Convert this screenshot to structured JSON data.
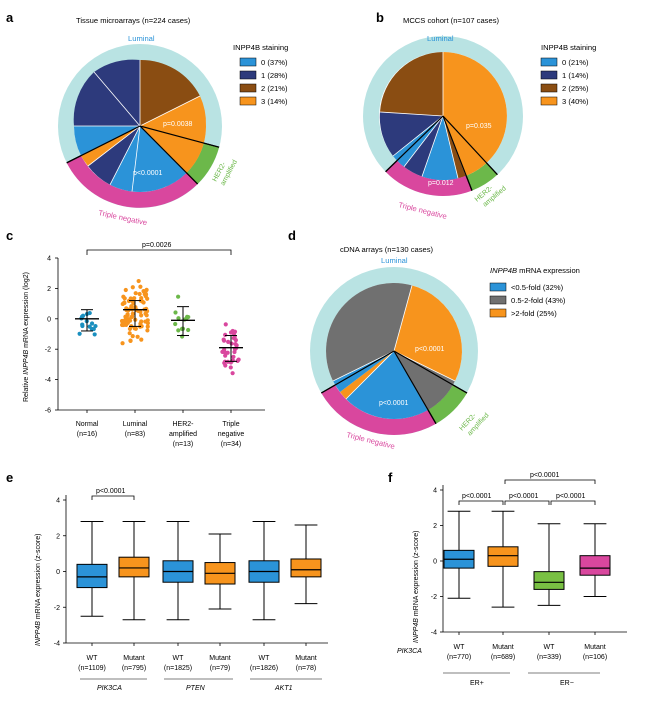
{
  "panels": {
    "a": {
      "letter": "a",
      "title": "Tissue microarrays (n=224 cases)",
      "legend_title": "INPP4B staining",
      "outer_labels": {
        "luminal": "Luminal",
        "her2_line1": "HER2-",
        "her2_line2": "amplified",
        "triple": "Triple negative"
      },
      "pvalues": {
        "luminal": "p=0.0038",
        "triple": "p<0.0001"
      }
    },
    "b": {
      "letter": "b",
      "title": "MCCS cohort (n=107 cases)",
      "legend_title": "INPP4B staining",
      "outer_labels": {
        "luminal": "Luminal",
        "her2_line1": "HER2-",
        "her2_line2": "amplified",
        "triple": "Triple negative"
      },
      "pvalues": {
        "luminal": "p=0.035",
        "triple": "p=0.012"
      }
    },
    "c": {
      "letter": "c",
      "ylabel_pre": "Relative ",
      "ylabel_gene": "INPP4B",
      "ylabel_post": " mRNA expression (log2)",
      "pvalue": "p=0.0026"
    },
    "d": {
      "letter": "d",
      "title": "cDNA arrays (n=130 cases)",
      "legend_title_gene": "INPP4B",
      "legend_title_rest": " mRNA expression",
      "outer_labels": {
        "luminal": "Luminal",
        "her2_line1": "HER2-",
        "her2_line2": "amplified",
        "triple": "Triple negative"
      },
      "pvalues": {
        "luminal": "p<0.0001",
        "triple": "p<0.0001"
      }
    },
    "e": {
      "letter": "e",
      "ylabel_gene": "INPP4B",
      "ylabel_rest": " mRNA expression (z-score)",
      "pvalue": "p<0.0001",
      "genes": [
        "PIK3CA",
        "PTEN",
        "AKT1"
      ]
    },
    "f": {
      "letter": "f",
      "ylabel_gene": "INPP4B",
      "ylabel_rest": " mRNA expression (z-score)",
      "row_label": "PIK3CA",
      "pvalues": [
        "p<0.0001",
        "p<0.0001",
        "p<0.0001",
        "p<0.0001"
      ],
      "groups": [
        "ER+",
        "ER−"
      ]
    }
  },
  "chart_data": [
    {
      "id": "a",
      "type": "pie",
      "title": "Tissue microarrays (n=224 cases)",
      "legend": [
        {
          "label": "0 (37%)",
          "color": "#2b93d8",
          "value": 37
        },
        {
          "label": "1 (28%)",
          "color": "#2d3a7c",
          "value": 28
        },
        {
          "label": "2 (21%)",
          "color": "#8a4d12",
          "value": 21
        },
        {
          "label": "3 (14%)",
          "color": "#f7941d",
          "value": 14
        }
      ],
      "subtypes": [
        "Luminal",
        "HER2-amplified",
        "Triple negative"
      ]
    },
    {
      "id": "b",
      "type": "pie",
      "title": "MCCS cohort (n=107 cases)",
      "legend": [
        {
          "label": "0 (21%)",
          "color": "#2b93d8",
          "value": 21
        },
        {
          "label": "1 (14%)",
          "color": "#2d3a7c",
          "value": 14
        },
        {
          "label": "2 (25%)",
          "color": "#8a4d12",
          "value": 25
        },
        {
          "label": "3 (40%)",
          "color": "#f7941d",
          "value": 40
        }
      ],
      "subtypes": [
        "Luminal",
        "HER2-amplified",
        "Triple negative"
      ]
    },
    {
      "id": "c",
      "type": "scatter",
      "categories": [
        {
          "name": "Normal",
          "n": "(n=16)",
          "color": "#1a8fbf",
          "median": 0.0,
          "sd_low": -0.8,
          "sd_high": 0.6
        },
        {
          "name": "Luminal",
          "n": "(n=83)",
          "color": "#f7941d",
          "median": 0.6,
          "sd_low": -0.5,
          "sd_high": 1.2
        },
        {
          "name_line1": "HER2-",
          "name_line2": "amplified",
          "n": "(n=13)",
          "color": "#6cb84a",
          "median": -0.1,
          "sd_low": -1.1,
          "sd_high": 0.8
        },
        {
          "name_line1": "Triple",
          "name_line2": "negative",
          "n": "(n=34)",
          "color": "#d9479e",
          "median": -1.9,
          "sd_low": -2.8,
          "sd_high": -1.1
        }
      ],
      "ylim": [
        -6,
        4
      ],
      "yticks": [
        "4",
        "2",
        "0",
        "-2",
        "-4",
        "-6"
      ]
    },
    {
      "id": "d",
      "type": "pie",
      "title": "cDNA arrays (n=130 cases)",
      "legend": [
        {
          "label": "<0.5-fold (32%)",
          "color": "#2b93d8",
          "value": 32
        },
        {
          "label": "0.5-2-fold (43%)",
          "color": "#707070",
          "value": 43
        },
        {
          "label": ">2-fold (25%)",
          "color": "#f7941d",
          "value": 25
        }
      ],
      "subtypes": [
        "Luminal",
        "HER2-amplified",
        "Triple negative"
      ]
    },
    {
      "id": "e",
      "type": "box",
      "ylim": [
        -4,
        4
      ],
      "yticks": [
        "4",
        "2",
        "0",
        "-2",
        "-4"
      ],
      "boxes": [
        {
          "label": "WT",
          "n": "(n=1109)",
          "gene": "PIK3CA",
          "color": "#2b93d8",
          "wlow": -2.5,
          "q1": -0.9,
          "med": -0.3,
          "q3": 0.4,
          "whigh": 2.8
        },
        {
          "label": "Mutant",
          "n": "(n=795)",
          "gene": "PIK3CA",
          "color": "#f7941d",
          "wlow": -2.7,
          "q1": -0.3,
          "med": 0.2,
          "q3": 0.8,
          "whigh": 2.8
        },
        {
          "label": "WT",
          "n": "(n=1825)",
          "gene": "PTEN",
          "color": "#2b93d8",
          "wlow": -2.7,
          "q1": -0.6,
          "med": 0.0,
          "q3": 0.6,
          "whigh": 2.8
        },
        {
          "label": "Mutant",
          "n": "(n=79)",
          "gene": "PTEN",
          "color": "#f7941d",
          "wlow": -2.1,
          "q1": -0.7,
          "med": -0.1,
          "q3": 0.5,
          "whigh": 2.1
        },
        {
          "label": "WT",
          "n": "(n=1826)",
          "gene": "AKT1",
          "color": "#2b93d8",
          "wlow": -2.7,
          "q1": -0.6,
          "med": 0.0,
          "q3": 0.6,
          "whigh": 2.8
        },
        {
          "label": "Mutant",
          "n": "(n=78)",
          "gene": "AKT1",
          "color": "#f7941d",
          "wlow": -1.8,
          "q1": -0.3,
          "med": 0.1,
          "q3": 0.7,
          "whigh": 2.6
        }
      ]
    },
    {
      "id": "f",
      "type": "box",
      "ylim": [
        -4,
        4
      ],
      "yticks": [
        "4",
        "2",
        "0",
        "-2",
        "-4"
      ],
      "boxes": [
        {
          "label": "WT",
          "n": "(n=770)",
          "group": "ER+",
          "color": "#2b93d8",
          "wlow": -2.1,
          "q1": -0.4,
          "med": 0.1,
          "q3": 0.6,
          "whigh": 2.8
        },
        {
          "label": "Mutant",
          "n": "(n=689)",
          "group": "ER+",
          "color": "#f7941d",
          "wlow": -2.6,
          "q1": -0.3,
          "med": 0.3,
          "q3": 0.8,
          "whigh": 2.8
        },
        {
          "label": "WT",
          "n": "(n=339)",
          "group": "ER−",
          "color": "#79c043",
          "wlow": -2.5,
          "q1": -1.6,
          "med": -1.2,
          "q3": -0.6,
          "whigh": 2.1
        },
        {
          "label": "Mutant",
          "n": "(n=106)",
          "group": "ER−",
          "color": "#d9479e",
          "wlow": -2.0,
          "q1": -0.8,
          "med": -0.4,
          "q3": 0.3,
          "whigh": 2.1
        }
      ]
    }
  ]
}
